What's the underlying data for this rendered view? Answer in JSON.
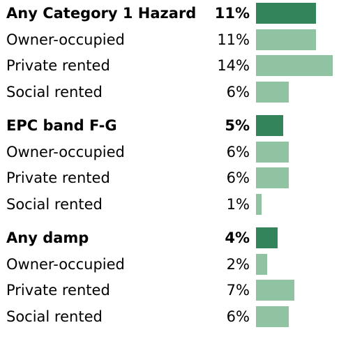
{
  "chart_data": {
    "type": "bar",
    "orientation": "horizontal",
    "colors": {
      "total": "#33845a",
      "tenure": "#8fc3a2"
    },
    "groups": [
      {
        "name": "Any Category 1 Hazard",
        "total": 11,
        "total_label": "11%",
        "items": [
          {
            "label": "Owner-occupied",
            "value": 11,
            "value_label": "11%"
          },
          {
            "label": "Private rented",
            "value": 14,
            "value_label": "14%"
          },
          {
            "label": "Social rented",
            "value": 6,
            "value_label": "6%"
          }
        ]
      },
      {
        "name": "EPC band F-G",
        "total": 5,
        "total_label": "5%",
        "items": [
          {
            "label": "Owner-occupied",
            "value": 6,
            "value_label": "6%"
          },
          {
            "label": "Private rented",
            "value": 6,
            "value_label": "6%"
          },
          {
            "label": "Social rented",
            "value": 1,
            "value_label": "1%"
          }
        ]
      },
      {
        "name": "Any damp",
        "total": 4,
        "total_label": "4%",
        "items": [
          {
            "label": "Owner-occupied",
            "value": 2,
            "value_label": "2%"
          },
          {
            "label": "Private rented",
            "value": 7,
            "value_label": "7%"
          },
          {
            "label": "Social rented",
            "value": 6,
            "value_label": "6%"
          }
        ]
      }
    ]
  }
}
